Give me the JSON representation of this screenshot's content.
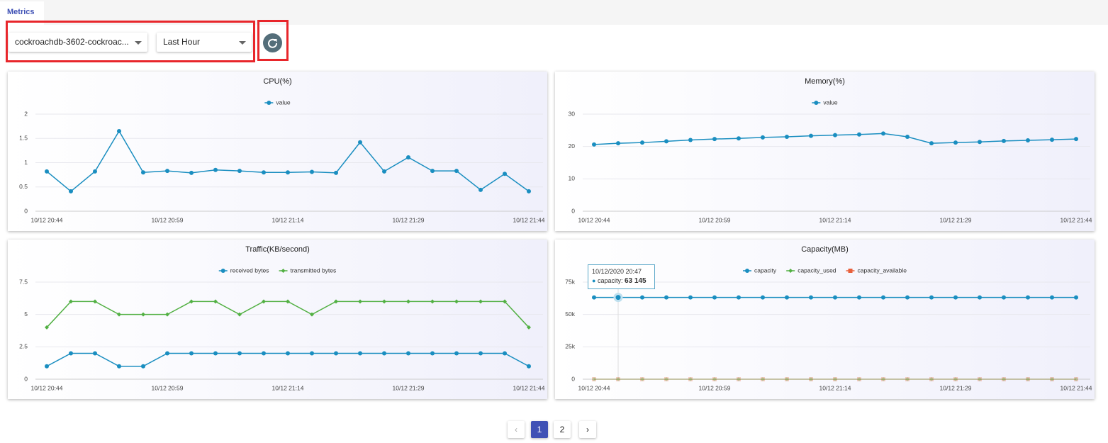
{
  "tab": "Metrics",
  "controls": {
    "instance": "cockroachdb-3602-cockroac...",
    "range": "Last Hour"
  },
  "chart_data": [
    {
      "type": "line",
      "title": "CPU(%)",
      "categories": [
        "10/12 20:44",
        null,
        null,
        null,
        null,
        "10/12 20:59",
        null,
        null,
        null,
        null,
        "10/12 21:14",
        null,
        null,
        null,
        null,
        "10/12 21:29",
        null,
        null,
        null,
        null,
        "10/12 21:44"
      ],
      "series": [
        {
          "name": "value",
          "color": "#1a8ec0",
          "marker": "circle",
          "values": [
            0.82,
            0.41,
            0.82,
            1.65,
            0.8,
            0.83,
            0.79,
            0.85,
            0.83,
            0.8,
            0.8,
            0.81,
            0.79,
            1.42,
            0.82,
            1.11,
            0.83,
            0.83,
            0.44,
            0.77,
            0.41
          ]
        }
      ],
      "ylim": [
        0,
        2
      ],
      "yticks": [
        0,
        0.5,
        1,
        1.5,
        2
      ],
      "grid": true
    },
    {
      "type": "line",
      "title": "Memory(%)",
      "categories": [
        "10/12 20:44",
        null,
        null,
        null,
        null,
        "10/12 20:59",
        null,
        null,
        null,
        null,
        "10/12 21:14",
        null,
        null,
        null,
        null,
        "10/12 21:29",
        null,
        null,
        null,
        null,
        "10/12 21:44"
      ],
      "series": [
        {
          "name": "value",
          "color": "#1a8ec0",
          "marker": "circle",
          "values": [
            20.6,
            21,
            21.2,
            21.6,
            22,
            22.3,
            22.5,
            22.8,
            23,
            23.3,
            23.5,
            23.7,
            24,
            23,
            21,
            21.2,
            21.4,
            21.7,
            21.9,
            22.1,
            22.3
          ]
        }
      ],
      "ylim": [
        0,
        30
      ],
      "yticks": [
        0,
        10,
        20,
        30
      ],
      "grid": true
    },
    {
      "type": "line",
      "title": "Traffic(KB/second)",
      "categories": [
        "10/12 20:44",
        null,
        null,
        null,
        null,
        "10/12 20:59",
        null,
        null,
        null,
        null,
        "10/12 21:14",
        null,
        null,
        null,
        null,
        "10/12 21:29",
        null,
        null,
        null,
        null,
        "10/12 21:44"
      ],
      "series": [
        {
          "name": "received bytes",
          "color": "#1a8ec0",
          "marker": "circle",
          "values": [
            1,
            2,
            2,
            1,
            1,
            2,
            2,
            2,
            2,
            2,
            2,
            2,
            2,
            2,
            2,
            2,
            2,
            2,
            2,
            2,
            1
          ]
        },
        {
          "name": "transmitted bytes",
          "color": "#52b043",
          "marker": "diamond",
          "values": [
            4,
            6,
            6,
            5,
            5,
            5,
            6,
            6,
            5,
            6,
            6,
            5,
            6,
            6,
            6,
            6,
            6,
            6,
            6,
            6,
            4
          ]
        }
      ],
      "ylim": [
        0,
        7.5
      ],
      "yticks": [
        0,
        2.5,
        5,
        7.5
      ],
      "grid": true
    },
    {
      "type": "line",
      "title": "Capacity(MB)",
      "categories": [
        "10/12 20:44",
        null,
        null,
        null,
        null,
        "10/12 20:59",
        null,
        null,
        null,
        null,
        "10/12 21:14",
        null,
        null,
        null,
        null,
        "10/12 21:29",
        null,
        null,
        null,
        null,
        "10/12 21:44"
      ],
      "series": [
        {
          "name": "capacity",
          "color": "#1a8ec0",
          "marker": "circle",
          "values": [
            63145,
            63145,
            63145,
            63145,
            63145,
            63145,
            63145,
            63145,
            63145,
            63145,
            63145,
            63145,
            63145,
            63145,
            63145,
            63145,
            63145,
            63145,
            63145,
            63145,
            63145
          ]
        },
        {
          "name": "capacity_used",
          "color": "#52b043",
          "marker": "diamond",
          "values": [
            0,
            0,
            0,
            0,
            0,
            0,
            0,
            0,
            0,
            0,
            0,
            0,
            0,
            0,
            0,
            0,
            0,
            0,
            0,
            0,
            0
          ]
        },
        {
          "name": "capacity_available",
          "color": "#e8603c",
          "marker": "square",
          "values": [
            0,
            0,
            0,
            0,
            0,
            0,
            0,
            0,
            0,
            0,
            0,
            0,
            0,
            0,
            0,
            0,
            0,
            0,
            0,
            0,
            0
          ]
        }
      ],
      "ylim": [
        0,
        75000
      ],
      "yticks": [
        0,
        {
          "value": 25000,
          "label": "25k"
        },
        {
          "value": 50000,
          "label": "50k"
        },
        {
          "value": 75000,
          "label": "75k"
        }
      ],
      "grid": true,
      "tooltip": {
        "title": "10/12/2020 20:47",
        "label": "capacity:",
        "value_label": "63 145"
      }
    }
  ],
  "pagination": {
    "pages": [
      "1",
      "2"
    ],
    "active": "1"
  }
}
